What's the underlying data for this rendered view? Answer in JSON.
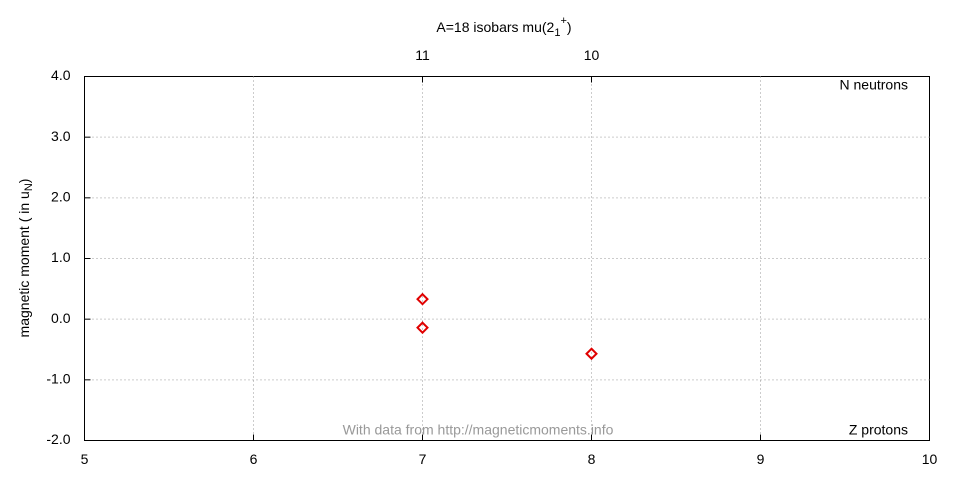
{
  "chart_data": {
    "type": "scatter",
    "title": {
      "main": "A=18 isobars mu(2",
      "sub": "1",
      "sup": "+",
      "end": ")"
    },
    "ylabel": {
      "main": "magnetic moment ( in u",
      "sub": "N",
      "end": ")"
    },
    "x2label": "N neutrons",
    "xlabel": "Z protons",
    "annotation": "With data from http://magneticmoments.info",
    "series": [
      {
        "color": "#e00000",
        "x": [
          7,
          7,
          8
        ],
        "values": [
          0.33,
          -0.14,
          -0.57
        ]
      }
    ],
    "xlim": [
      5,
      10
    ],
    "xticks": [
      5,
      6,
      7,
      8,
      9,
      10
    ],
    "x2ticks": [
      {
        "value": 7,
        "label": "11"
      },
      {
        "value": 8,
        "label": "10"
      }
    ],
    "ylim": [
      -2,
      4
    ],
    "yticks": [
      {
        "value": -2,
        "label": "-2.0"
      },
      {
        "value": -1,
        "label": "-1.0"
      },
      {
        "value": 0,
        "label": "0.0"
      },
      {
        "value": 1,
        "label": "1.0"
      },
      {
        "value": 2,
        "label": "2.0"
      },
      {
        "value": 3,
        "label": "3.0"
      },
      {
        "value": 4,
        "label": "4.0"
      }
    ],
    "grid": true
  }
}
